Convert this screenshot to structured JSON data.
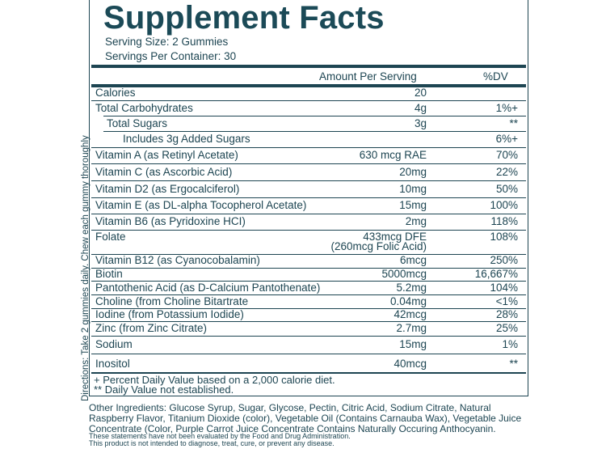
{
  "title": "Supplement Facts",
  "serving_size": "Serving Size: 2 Gummies",
  "servings_per_container": "Servings Per Container: 30",
  "header": {
    "amount": "Amount Per Serving",
    "dv": "%DV"
  },
  "rows": [
    {
      "name": "Calories",
      "amount": "20",
      "dv": ""
    },
    {
      "name": "Total Carbohydrates",
      "amount": "4g",
      "dv": "1%+"
    },
    {
      "name": "Total Sugars",
      "amount": "3g",
      "dv": "**"
    },
    {
      "name": "Includes 3g Added Sugars",
      "amount": "",
      "dv": "6%+"
    },
    {
      "name": "Vitamin A (as Retinyl Acetate)",
      "amount": "630 mcg RAE",
      "dv": "70%"
    },
    {
      "name": "Vitamin C (as Ascorbic Acid)",
      "amount": "20mg",
      "dv": "22%"
    },
    {
      "name": "Vitamin D2 (as Ergocalciferol)",
      "amount": "10mg",
      "dv": "50%"
    },
    {
      "name": "Vitamin E (as DL-alpha Tocopherol Acetate)",
      "amount": "15mg",
      "dv": "100%"
    },
    {
      "name": "Vitamin B6 (as Pyridoxine HCI)",
      "amount": "2mg",
      "dv": "118%"
    },
    {
      "name": "Folate",
      "amount": "433mcg DFE",
      "amount_note": "(260mcg Folic Acid)",
      "dv": "108%"
    },
    {
      "name": "Vitamin B12 (as Cyanocobalamin)",
      "amount": "6mcg",
      "dv": "250%"
    },
    {
      "name": "Biotin",
      "amount": "5000mcg",
      "dv": "16,667%"
    },
    {
      "name": "Pantothenic Acid (as D-Calcium Pantothenate)",
      "amount": "5.2mg",
      "dv": "104%"
    },
    {
      "name": "Choline (from Choline Bitartrate",
      "amount": "0.04mg",
      "dv": "<1%"
    },
    {
      "name": "Iodine (from Potassium Iodide)",
      "amount": "42mcg",
      "dv": "28%"
    },
    {
      "name": "Zinc (from Zinc Citrate)",
      "amount": "2.7mg",
      "dv": "25%"
    },
    {
      "name": "Sodium",
      "amount": "15mg",
      "dv": "1%"
    },
    {
      "name": "Inositol",
      "amount": "40mcg",
      "dv": "**"
    }
  ],
  "footnotes": [
    "+ Percent Daily Value based on a 2,000 calorie diet.",
    "** Daily Value not established."
  ],
  "directions": "Directions: Take 2 gummies daily. Chew each gummy thoroughly",
  "other_ingredients": [
    "Other Ingredients: Glucose Syrup, Sugar, Glycose, Pectin, Citric Acid, Sodium Citrate, Natural",
    "Raspberry Flavor, Titanium Dioxide (color), Vegetable Oil (Contains Carnauba Wax), Vegetable Juice",
    "Concentrate (Color, Purple Carrot Juice Concentrate Contains Naturally Occuring Anthocyanin."
  ],
  "disclaimer": [
    "These statements have not been evaluated by the Food and Drug Administration.",
    "This product is not intended to diagnose, treat, cure, or prevent any disease."
  ]
}
